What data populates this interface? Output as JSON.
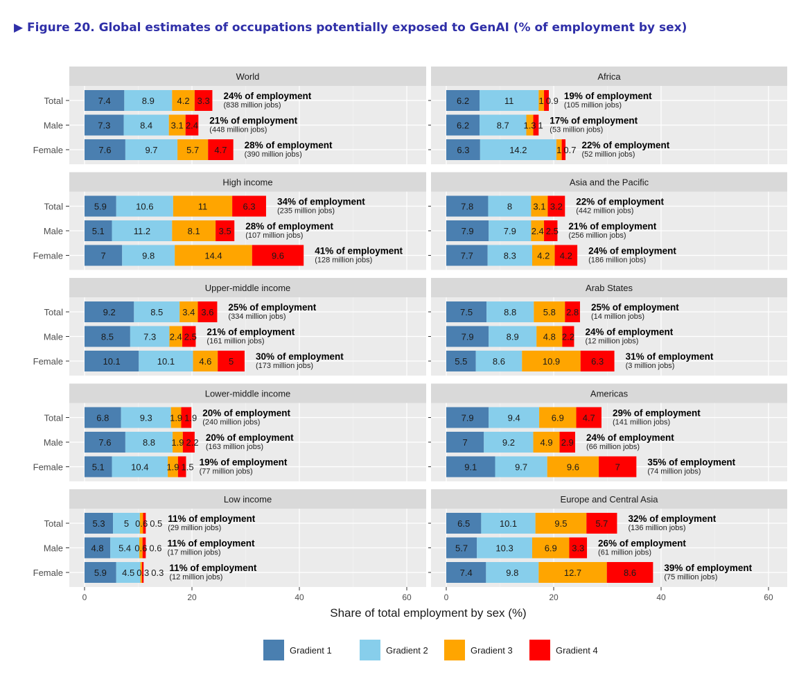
{
  "title": "Figure 20. Global estimates of occupations potentially exposed to GenAI (% of employment by sex)",
  "title_marker": "▶",
  "chart_data": {
    "type": "bar",
    "orientation": "horizontal",
    "stacked": true,
    "xlabel": "Share of total employment by sex (%)",
    "xlim": [
      0,
      65
    ],
    "xticks": [
      0,
      20,
      40,
      60
    ],
    "grid": true,
    "legend": "bottom",
    "series_names": [
      "Gradient 1",
      "Gradient 2",
      "Gradient 3",
      "Gradient 4"
    ],
    "colors": [
      "#4a7fb0",
      "#87ceeb",
      "#ffa500",
      "#ff0000"
    ],
    "panels": [
      {
        "name": "World",
        "rows": [
          {
            "sex": "Total",
            "values": [
              7.4,
              8.9,
              4.2,
              3.3
            ],
            "share": "24% of employment",
            "jobs": "(838 million jobs)"
          },
          {
            "sex": "Male",
            "values": [
              7.3,
              8.4,
              3.1,
              2.4
            ],
            "share": "21% of employment",
            "jobs": "(448 million jobs)"
          },
          {
            "sex": "Female",
            "values": [
              7.6,
              9.7,
              5.7,
              4.7
            ],
            "share": "28% of employment",
            "jobs": "(390 million jobs)"
          }
        ]
      },
      {
        "name": "Africa",
        "rows": [
          {
            "sex": "Total",
            "values": [
              6.2,
              11,
              1,
              0.9
            ],
            "share": "19% of employment",
            "jobs": "(105 million jobs)"
          },
          {
            "sex": "Male",
            "values": [
              6.2,
              8.7,
              1.3,
              1
            ],
            "share": "17% of employment",
            "jobs": "(53 million jobs)"
          },
          {
            "sex": "Female",
            "values": [
              6.3,
              14.2,
              1,
              0.7
            ],
            "share": "22% of employment",
            "jobs": "(52 million jobs)"
          }
        ]
      },
      {
        "name": "High income",
        "rows": [
          {
            "sex": "Total",
            "values": [
              5.9,
              10.6,
              11,
              6.3
            ],
            "share": "34% of employment",
            "jobs": "(235 million jobs)"
          },
          {
            "sex": "Male",
            "values": [
              5.1,
              11.2,
              8.1,
              3.5
            ],
            "share": "28% of employment",
            "jobs": "(107 million jobs)"
          },
          {
            "sex": "Female",
            "values": [
              7,
              9.8,
              14.4,
              9.6
            ],
            "share": "41% of employment",
            "jobs": "(128 million jobs)"
          }
        ]
      },
      {
        "name": "Asia and the Pacific",
        "rows": [
          {
            "sex": "Total",
            "values": [
              7.8,
              8,
              3.1,
              3.2
            ],
            "share": "22% of employment",
            "jobs": "(442 million jobs)"
          },
          {
            "sex": "Male",
            "values": [
              7.9,
              7.9,
              2.4,
              2.5
            ],
            "share": "21% of employment",
            "jobs": "(256 million jobs)"
          },
          {
            "sex": "Female",
            "values": [
              7.7,
              8.3,
              4.2,
              4.2
            ],
            "share": "24% of employment",
            "jobs": "(186 million jobs)"
          }
        ]
      },
      {
        "name": "Upper-middle income",
        "rows": [
          {
            "sex": "Total",
            "values": [
              9.2,
              8.5,
              3.4,
              3.6
            ],
            "share": "25% of employment",
            "jobs": "(334 million jobs)"
          },
          {
            "sex": "Male",
            "values": [
              8.5,
              7.3,
              2.4,
              2.5
            ],
            "share": "21% of employment",
            "jobs": "(161 million jobs)"
          },
          {
            "sex": "Female",
            "values": [
              10.1,
              10.1,
              4.6,
              5
            ],
            "share": "30% of employment",
            "jobs": "(173 million jobs)"
          }
        ]
      },
      {
        "name": "Arab States",
        "rows": [
          {
            "sex": "Total",
            "values": [
              7.5,
              8.8,
              5.8,
              2.8
            ],
            "share": "25% of employment",
            "jobs": "(14 million jobs)"
          },
          {
            "sex": "Male",
            "values": [
              7.9,
              8.9,
              4.8,
              2.2
            ],
            "share": "24% of employment",
            "jobs": "(12 million jobs)"
          },
          {
            "sex": "Female",
            "values": [
              5.5,
              8.6,
              10.9,
              6.3
            ],
            "share": "31% of employment",
            "jobs": "(3 million jobs)"
          }
        ]
      },
      {
        "name": "Lower-middle income",
        "rows": [
          {
            "sex": "Total",
            "values": [
              6.8,
              9.3,
              1.9,
              1.9
            ],
            "share": "20% of employment",
            "jobs": "(240 million jobs)"
          },
          {
            "sex": "Male",
            "values": [
              7.6,
              8.8,
              1.9,
              2.2
            ],
            "share": "20% of employment",
            "jobs": "(163 million jobs)"
          },
          {
            "sex": "Female",
            "values": [
              5.1,
              10.4,
              1.9,
              1.5
            ],
            "share": "19% of employment",
            "jobs": "(77 million jobs)"
          }
        ]
      },
      {
        "name": "Americas",
        "rows": [
          {
            "sex": "Total",
            "values": [
              7.9,
              9.4,
              6.9,
              4.7
            ],
            "share": "29% of employment",
            "jobs": "(141 million jobs)"
          },
          {
            "sex": "Male",
            "values": [
              7,
              9.2,
              4.9,
              2.9
            ],
            "share": "24% of employment",
            "jobs": "(66 million jobs)"
          },
          {
            "sex": "Female",
            "values": [
              9.1,
              9.7,
              9.6,
              7
            ],
            "share": "35% of employment",
            "jobs": "(74 million jobs)"
          }
        ]
      },
      {
        "name": "Low income",
        "rows": [
          {
            "sex": "Total",
            "values": [
              5.3,
              5,
              0.6,
              0.5
            ],
            "share": "11% of employment",
            "jobs": "(29 million jobs)"
          },
          {
            "sex": "Male",
            "values": [
              4.8,
              5.4,
              0.6,
              0.6
            ],
            "share": "11% of employment",
            "jobs": "(17 million jobs)"
          },
          {
            "sex": "Female",
            "values": [
              5.9,
              4.5,
              0.3,
              0.3
            ],
            "share": "11% of employment",
            "jobs": "(12 million jobs)"
          }
        ]
      },
      {
        "name": "Europe and Central Asia",
        "rows": [
          {
            "sex": "Total",
            "values": [
              6.5,
              10.1,
              9.5,
              5.7
            ],
            "share": "32% of employment",
            "jobs": "(136 million jobs)"
          },
          {
            "sex": "Male",
            "values": [
              5.7,
              10.3,
              6.9,
              3.3
            ],
            "share": "26% of employment",
            "jobs": "(61 million jobs)"
          },
          {
            "sex": "Female",
            "values": [
              7.4,
              9.8,
              12.7,
              8.6
            ],
            "share": "39% of employment",
            "jobs": "(75 million jobs)"
          }
        ]
      }
    ]
  }
}
